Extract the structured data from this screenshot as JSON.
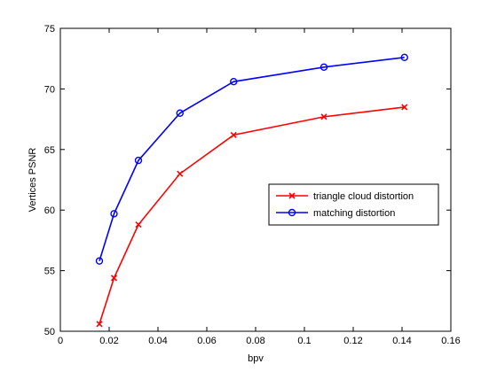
{
  "chart_data": {
    "type": "line",
    "xlabel": "bpv",
    "ylabel": "Vertices PSNR",
    "xlim": [
      0,
      0.16
    ],
    "ylim": [
      50,
      75
    ],
    "xticks": [
      0,
      0.02,
      0.04,
      0.06,
      0.08,
      0.1,
      0.12,
      0.14,
      0.16
    ],
    "xtick_labels": [
      "0",
      "0.02",
      "0.04",
      "0.06",
      "0.08",
      "0.1",
      "0.12",
      "0.14",
      "0.16"
    ],
    "yticks": [
      50,
      55,
      60,
      65,
      70,
      75
    ],
    "ytick_labels": [
      "50",
      "55",
      "60",
      "65",
      "70",
      "75"
    ],
    "grid": false,
    "legend_position": "right",
    "series": [
      {
        "name": "triangle cloud distortion",
        "color": "#ff0000",
        "marker": "x",
        "x": [
          0.016,
          0.022,
          0.032,
          0.049,
          0.071,
          0.108,
          0.141
        ],
        "y": [
          50.6,
          54.4,
          58.8,
          63.0,
          66.2,
          67.7,
          68.5
        ]
      },
      {
        "name": "matching distortion",
        "color": "#0000ff",
        "marker": "o",
        "x": [
          0.016,
          0.022,
          0.032,
          0.049,
          0.071,
          0.108,
          0.141
        ],
        "y": [
          55.8,
          59.7,
          64.1,
          68.0,
          70.6,
          71.8,
          72.6
        ]
      }
    ]
  }
}
